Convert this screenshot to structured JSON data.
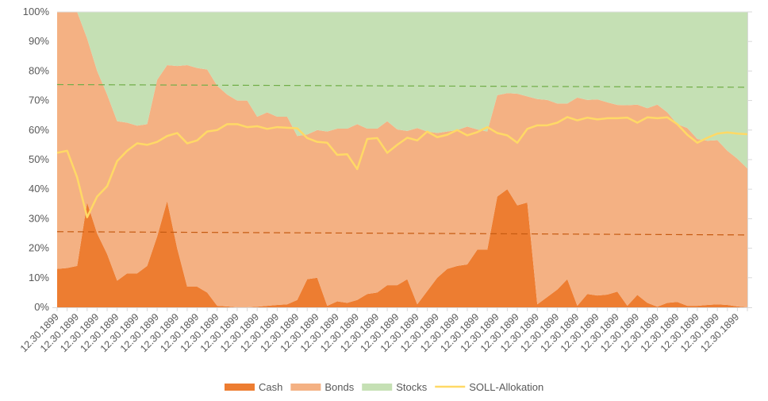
{
  "chart_data": {
    "type": "area",
    "stacked": true,
    "title": "",
    "xlabel": "",
    "ylabel": "",
    "ylim": [
      0,
      100
    ],
    "y_unit": "%",
    "y_ticks": [
      "0%",
      "10%",
      "20%",
      "30%",
      "40%",
      "50%",
      "60%",
      "70%",
      "80%",
      "90%",
      "100%"
    ],
    "x_tick_label": "12.30.1899",
    "x_label_every": 2,
    "grid": false,
    "legend_placement": "bottom",
    "colors": {
      "Cash": "#ed7d31",
      "Bonds": "#f4b183",
      "Stocks": "#c5e0b4",
      "SOLL-Allokation": "#ffd966",
      "trend_stocks": "#70ad47",
      "trend_cash": "#c55a11"
    },
    "series": [
      {
        "name": "Cash",
        "kind": "area",
        "values": [
          13,
          13.3,
          14,
          35.5,
          25,
          18,
          9,
          11.5,
          11.5,
          14,
          24,
          36,
          20,
          7,
          7,
          5,
          0.5,
          0.3,
          0,
          0,
          0.2,
          0.5,
          0.8,
          1,
          2.5,
          9.5,
          10,
          0.5,
          2,
          1.5,
          2.5,
          4.5,
          5,
          7.5,
          7.5,
          9.5,
          1,
          5.5,
          10,
          13,
          14,
          14.5,
          19.5,
          19.5,
          37.5,
          40,
          34.5,
          35.5,
          1,
          3.5,
          6,
          9.5,
          0.5,
          4.5,
          4,
          4.3,
          5.3,
          0.5,
          4.2,
          1.5,
          0.2,
          1.5,
          1.8,
          0.5,
          0.5,
          0.8,
          1,
          0.8,
          0.3,
          0
        ]
      },
      {
        "name": "Bonds",
        "kind": "area",
        "values": [
          87,
          86.7,
          86,
          55.5,
          55,
          54,
          54,
          51,
          50,
          48,
          53,
          46,
          61.7,
          75,
          74,
          75.5,
          74.5,
          71.7,
          70,
          70,
          64.3,
          65.5,
          63.7,
          63.5,
          55.5,
          49,
          50,
          59,
          58.5,
          59,
          59.5,
          56,
          55.5,
          55.5,
          52.7,
          50.2,
          59.7,
          54,
          49,
          46.5,
          46,
          46.7,
          40.7,
          40,
          34.3,
          32.5,
          37.8,
          35.9,
          69.5,
          66.7,
          63,
          59.5,
          70.5,
          65.7,
          66.4,
          65.1,
          63.2,
          67.9,
          64.4,
          65.9,
          68.4,
          64.5,
          60.2,
          60.2,
          56.5,
          55.6,
          55.6,
          52.2,
          50,
          47
        ]
      },
      {
        "name": "Stocks",
        "kind": "area",
        "values": [
          0,
          0,
          0,
          9,
          20,
          28,
          37,
          37.5,
          38.5,
          38,
          23,
          18,
          18.3,
          18,
          19,
          19.5,
          25,
          28,
          30,
          30,
          35.5,
          34,
          35.5,
          35.5,
          42,
          41.5,
          40,
          40.5,
          39.5,
          39.5,
          38,
          39.5,
          39.5,
          37,
          39.8,
          40.3,
          39.3,
          40.5,
          41,
          40.5,
          40,
          38.8,
          39.8,
          40.5,
          28.2,
          27.5,
          27.7,
          28.6,
          29.5,
          29.8,
          31,
          31,
          29,
          29.8,
          29.6,
          30.6,
          31.5,
          31.6,
          31.4,
          32.6,
          31.4,
          34,
          38,
          39.3,
          43,
          43.6,
          43.4,
          47,
          49.7,
          53
        ]
      },
      {
        "name": "SOLL-Allokation",
        "kind": "line",
        "values": [
          52.3,
          53,
          44,
          30.5,
          37.5,
          41,
          49.5,
          53,
          55.5,
          55,
          56,
          58,
          59,
          55.5,
          56.5,
          59.5,
          60,
          62,
          62,
          61,
          61.3,
          60.4,
          61,
          60.8,
          60.6,
          57.3,
          56,
          55.7,
          51.6,
          51.8,
          46.8,
          57,
          57.3,
          52.3,
          55,
          57.4,
          56.5,
          59.5,
          57.6,
          58.4,
          60,
          58.2,
          59.3,
          61,
          59,
          58.2,
          55.7,
          60.4,
          61.6,
          61.6,
          62.5,
          64.4,
          63.3,
          64.2,
          63.6,
          64,
          64,
          64.2,
          62.5,
          64.3,
          64,
          64.3,
          62,
          58.4,
          55.7,
          57.4,
          58.8,
          59.2,
          58.8,
          58.6
        ]
      }
    ],
    "trendlines": [
      {
        "of": "Stocks boundary",
        "start": 75.4,
        "end": 74.5,
        "style": "dashed"
      },
      {
        "of": "Cash",
        "start": 25.6,
        "end": 24.5,
        "style": "dashed"
      }
    ]
  }
}
